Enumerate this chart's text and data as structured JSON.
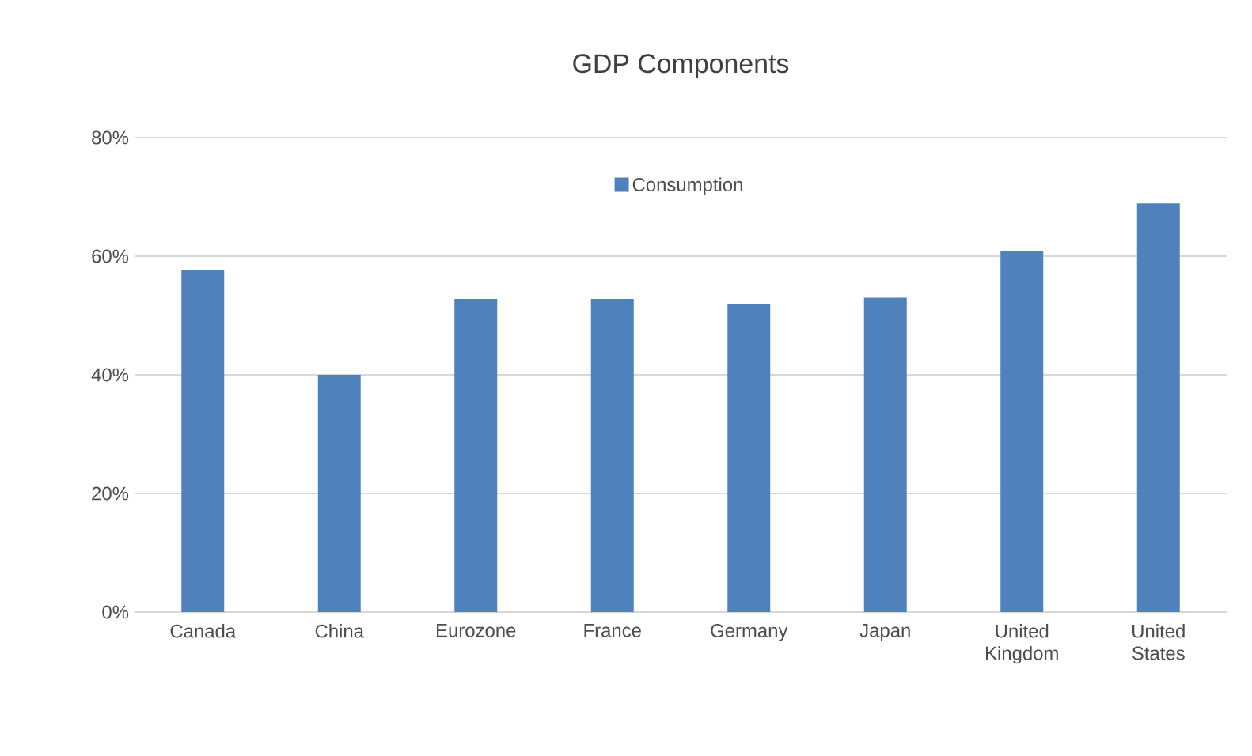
{
  "chart_data": {
    "type": "bar",
    "title": "GDP Components",
    "categories": [
      "Canada",
      "China",
      "Eurozone",
      "France",
      "Germany",
      "Japan",
      "United Kingdom",
      "United States"
    ],
    "series": [
      {
        "name": "Consumption",
        "color": "#4f81bd",
        "values": [
          57.6,
          40,
          52.8,
          52.8,
          51.9,
          53,
          60.8,
          68.9
        ]
      }
    ],
    "ylim": [
      0,
      80
    ],
    "yticks": [
      {
        "value": 0,
        "label": "0%"
      },
      {
        "value": 20,
        "label": "20%"
      },
      {
        "value": 40,
        "label": "40%"
      },
      {
        "value": 60,
        "label": "60%"
      },
      {
        "value": 80,
        "label": "80%"
      }
    ],
    "grid": "y",
    "legend": "top"
  }
}
